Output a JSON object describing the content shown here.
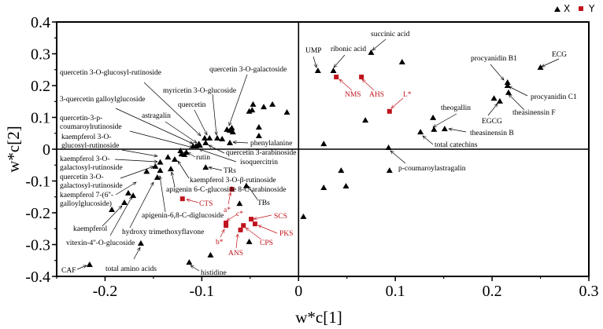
{
  "chart_data": {
    "type": "scatter",
    "title": "",
    "xlabel": "w*c[1]",
    "ylabel": "w*c[2]",
    "xlim": [
      -0.25,
      0.3
    ],
    "ylim": [
      -0.4,
      0.4
    ],
    "xticks": [
      "-0.2",
      "-0.1",
      "0",
      "0.1",
      "0.2",
      "0.3"
    ],
    "yticks": [
      "0.4",
      "0.3",
      "0.2",
      "0.1",
      "0",
      "-0.1",
      "-0.2",
      "-0.3",
      "-0.4"
    ],
    "grid": false,
    "reference_lines": {
      "x": 0,
      "y": 0
    },
    "legend": {
      "placement": "top-right",
      "entries": [
        "X",
        "Y"
      ]
    },
    "series": [
      {
        "name": "X",
        "marker": "triangle",
        "color": "#000000",
        "points": [
          [
            -0.047,
            0.141
          ],
          [
            -0.051,
            0.119
          ],
          [
            -0.048,
            0.123
          ],
          [
            -0.036,
            0.133
          ],
          [
            -0.027,
            0.141
          ],
          [
            -0.012,
            0.116
          ],
          [
            -0.041,
            0.069
          ],
          [
            -0.041,
            0.042
          ],
          [
            -0.071,
            0.02
          ],
          [
            -0.074,
            0.062
          ],
          [
            -0.071,
            0.059
          ],
          [
            -0.069,
            0.067
          ],
          [
            -0.068,
            0.054
          ],
          [
            -0.079,
            0.032
          ],
          [
            -0.084,
            0.035
          ],
          [
            -0.092,
            0.035
          ],
          [
            -0.097,
            0.035
          ],
          [
            -0.096,
            0.02
          ],
          [
            -0.103,
            0.017
          ],
          [
            -0.106,
            0.01
          ],
          [
            -0.109,
            0.01
          ],
          [
            -0.102,
            0.012
          ],
          [
            -0.122,
            -0.005
          ],
          [
            -0.121,
            -0.015
          ],
          [
            -0.118,
            -0.017
          ],
          [
            -0.116,
            -0.01
          ],
          [
            -0.135,
            -0.025
          ],
          [
            -0.128,
            -0.032
          ],
          [
            -0.143,
            -0.041
          ],
          [
            -0.148,
            -0.054
          ],
          [
            -0.157,
            -0.07
          ],
          [
            -0.143,
            -0.067
          ],
          [
            -0.132,
            -0.062
          ],
          [
            -0.146,
            -0.089
          ],
          [
            -0.096,
            -0.057
          ],
          [
            -0.054,
            -0.115
          ],
          [
            -0.061,
            -0.171
          ],
          [
            -0.176,
            -0.138
          ],
          [
            -0.171,
            -0.146
          ],
          [
            -0.18,
            -0.168
          ],
          [
            -0.193,
            -0.19
          ],
          [
            -0.163,
            -0.296
          ],
          [
            -0.113,
            -0.356
          ],
          [
            -0.091,
            -0.333
          ],
          [
            -0.051,
            -0.291
          ],
          [
            -0.216,
            -0.363
          ],
          [
            0.02,
            0.247
          ],
          [
            0.036,
            0.247
          ],
          [
            0.075,
            0.304
          ],
          [
            0.107,
            0.274
          ],
          [
            0.069,
            0.091
          ],
          [
            0.026,
            0.017
          ],
          [
            0.093,
            0.005
          ],
          [
            0.044,
            -0.067
          ],
          [
            0.094,
            -0.067
          ],
          [
            0.026,
            -0.121
          ],
          [
            0.049,
            -0.116
          ],
          [
            0.005,
            -0.212
          ],
          [
            0.139,
            0.099
          ],
          [
            0.14,
            0.062
          ],
          [
            0.151,
            0.064
          ],
          [
            0.126,
            0.054
          ],
          [
            0.25,
            0.257
          ],
          [
            0.216,
            0.21
          ],
          [
            0.216,
            0.2
          ],
          [
            0.217,
            0.178
          ],
          [
            0.202,
            0.16
          ],
          [
            0.208,
            0.151
          ]
        ]
      },
      {
        "name": "Y",
        "marker": "square",
        "color": "#c0141c",
        "points": [
          [
            -0.069,
            -0.126
          ],
          [
            -0.12,
            -0.156
          ],
          [
            -0.075,
            -0.232
          ],
          [
            -0.075,
            -0.24
          ],
          [
            -0.049,
            -0.22
          ],
          [
            -0.045,
            -0.235
          ],
          [
            -0.057,
            -0.24
          ],
          [
            -0.06,
            -0.254
          ],
          [
            0.039,
            0.227
          ],
          [
            0.065,
            0.227
          ],
          [
            0.094,
            0.119
          ]
        ]
      }
    ],
    "annotations": [
      {
        "lines": [
          "quercetin 3-O-glucosyl-rutinoside"
        ],
        "series": "X"
      },
      {
        "lines": [
          "myricetin 3-O-glucoside"
        ],
        "series": "X"
      },
      {
        "lines": [
          "quercetin 3-O-galactoside"
        ],
        "series": "X"
      },
      {
        "lines": [
          "3-quercetin galloylglucoside"
        ],
        "series": "X"
      },
      {
        "lines": [
          "quercetin"
        ],
        "series": "X"
      },
      {
        "lines": [
          "astragalin"
        ],
        "series": "X"
      },
      {
        "lines": [
          "quercetin-3-p-",
          "coumaroylrutinoside"
        ],
        "series": "X"
      },
      {
        "lines": [
          "kaempferol 3-O-",
          "glucosyl-rutinoside"
        ],
        "series": "X"
      },
      {
        "lines": [
          "phenylalanine"
        ],
        "series": "X"
      },
      {
        "lines": [
          "quercetin 3-arabinoside"
        ],
        "series": "X"
      },
      {
        "lines": [
          "rutin"
        ],
        "series": "X"
      },
      {
        "lines": [
          "isoquercitrin"
        ],
        "series": "X"
      },
      {
        "lines": [
          "TRs"
        ],
        "series": "X"
      },
      {
        "lines": [
          "kaempferol 3-O-β-rutinoside"
        ],
        "series": "X"
      },
      {
        "lines": [
          "apigenin 6-C-glucoside 8-C-arabinoside"
        ],
        "series": "X"
      },
      {
        "lines": [
          "TBs"
        ],
        "series": "X"
      },
      {
        "lines": [
          "kaempferol 3-O-",
          "galactosyl-rutinoside"
        ],
        "series": "X"
      },
      {
        "lines": [
          "quercetin 3-O-",
          "galactosyl-rutinoside"
        ],
        "series": "X"
      },
      {
        "lines": [
          "kaempferol 7-(6''-",
          "galloylglucoside)"
        ],
        "series": "X"
      },
      {
        "lines": [
          "apigenin-6,8-C-diglucoside"
        ],
        "series": "X"
      },
      {
        "lines": [
          "kaempferol"
        ],
        "series": "X"
      },
      {
        "lines": [
          "hydroxy trimethoxyflavone"
        ],
        "series": "X"
      },
      {
        "lines": [
          "vitexin-4''-O-glucoside"
        ],
        "series": "X"
      },
      {
        "lines": [
          "CAF"
        ],
        "series": "X"
      },
      {
        "lines": [
          "total amino acids"
        ],
        "series": "X"
      },
      {
        "lines": [
          "histidine"
        ],
        "series": "X"
      },
      {
        "lines": [
          "UMP"
        ],
        "series": "X"
      },
      {
        "lines": [
          "ribonic acid"
        ],
        "series": "X"
      },
      {
        "lines": [
          "succinic acid"
        ],
        "series": "X"
      },
      {
        "lines": [
          "procyanidin B1"
        ],
        "series": "X"
      },
      {
        "lines": [
          "ECG"
        ],
        "series": "X"
      },
      {
        "lines": [
          "procyanidin C1"
        ],
        "series": "X"
      },
      {
        "lines": [
          "theasinensin F"
        ],
        "series": "X"
      },
      {
        "lines": [
          "EGCG"
        ],
        "series": "X"
      },
      {
        "lines": [
          "theogallin"
        ],
        "series": "X"
      },
      {
        "lines": [
          "theasinensin B"
        ],
        "series": "X"
      },
      {
        "lines": [
          "total catechins"
        ],
        "series": "X"
      },
      {
        "lines": [
          "p-coumaroylastragalin"
        ],
        "series": "X"
      },
      {
        "lines": [
          "NMS"
        ],
        "series": "Y"
      },
      {
        "lines": [
          "AHS"
        ],
        "series": "Y"
      },
      {
        "lines": [
          "L*"
        ],
        "series": "Y"
      },
      {
        "lines": [
          "CTS"
        ],
        "series": "Y"
      },
      {
        "lines": [
          "a*"
        ],
        "series": "Y"
      },
      {
        "lines": [
          "c*"
        ],
        "series": "Y"
      },
      {
        "lines": [
          "b*"
        ],
        "series": "Y"
      },
      {
        "lines": [
          "SCS"
        ],
        "series": "Y"
      },
      {
        "lines": [
          "PKS"
        ],
        "series": "Y"
      },
      {
        "lines": [
          "CPS"
        ],
        "series": "Y"
      },
      {
        "lines": [
          "ANS"
        ],
        "series": "Y"
      }
    ]
  }
}
